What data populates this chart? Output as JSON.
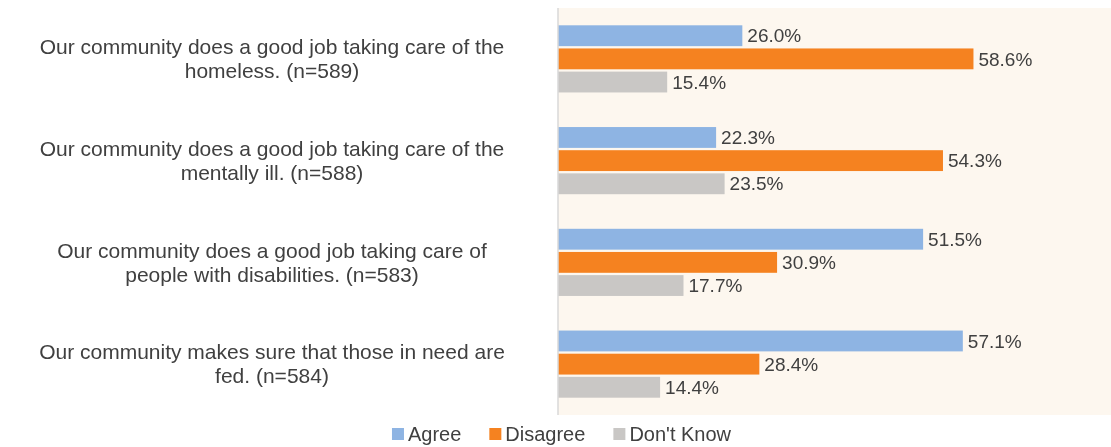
{
  "chart_data": {
    "type": "bar",
    "orientation": "horizontal",
    "categories": [
      "Our community does a good job taking care of the homeless. (n=589)",
      "Our community does a good job taking care of the mentally ill. (n=588)",
      "Our community does a good job taking care of people with disabilities. (n=583)",
      "Our community makes sure that those in need are fed. (n=584)"
    ],
    "series": [
      {
        "name": "Agree",
        "color": "#8eb4e3",
        "values": [
          26.0,
          22.3,
          51.5,
          57.1
        ],
        "value_labels": [
          "26.0%",
          "22.3%",
          "51.5%",
          "57.1%"
        ]
      },
      {
        "name": "Disagree",
        "color": "#f58220",
        "values": [
          58.6,
          54.3,
          30.9,
          28.4
        ],
        "value_labels": [
          "58.6%",
          "54.3%",
          "30.9%",
          "28.4%"
        ]
      },
      {
        "name": "Don't Know",
        "color": "#c9c7c5",
        "values": [
          15.4,
          23.5,
          17.7,
          14.4
        ],
        "value_labels": [
          "15.4%",
          "23.5%",
          "17.7%",
          "14.4%"
        ]
      }
    ],
    "xlim": [
      0,
      78
    ],
    "tick_labels": "y",
    "legend": "bottom"
  }
}
